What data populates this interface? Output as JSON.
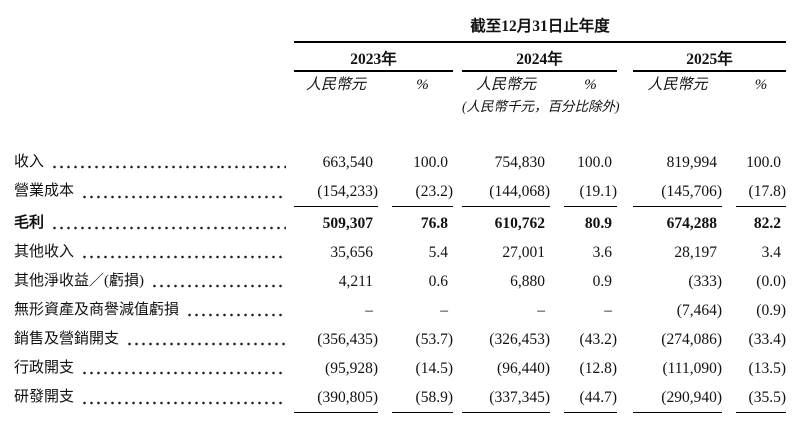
{
  "colors": {
    "background": "#ffffff",
    "text": "#111111",
    "rule": "#000000"
  },
  "header": {
    "period_title": "截至12月31日止年度",
    "years": [
      "2023年",
      "2024年",
      "2025年"
    ],
    "currency_label": "人民幣元",
    "percent_label": "%",
    "unit_note": "(人民幣千元，百分比除外)"
  },
  "rows": [
    {
      "label": "收入",
      "y2023": {
        "value": "663,540",
        "pct": "100.0"
      },
      "y2024": {
        "value": "754,830",
        "pct": "100.0"
      },
      "y2025": {
        "value": "819,994",
        "pct": "100.0"
      }
    },
    {
      "label": "營業成本",
      "y2023": {
        "value": "(154,233)",
        "pct": "(23.2)"
      },
      "y2024": {
        "value": "(144,068)",
        "pct": "(19.1)"
      },
      "y2025": {
        "value": "(145,706)",
        "pct": "(17.8)"
      }
    },
    {
      "label": "毛利",
      "y2023": {
        "value": "509,307",
        "pct": "76.8"
      },
      "y2024": {
        "value": "610,762",
        "pct": "80.9"
      },
      "y2025": {
        "value": "674,288",
        "pct": "82.2"
      }
    },
    {
      "label": "其他收入",
      "y2023": {
        "value": "35,656",
        "pct": "5.4"
      },
      "y2024": {
        "value": "27,001",
        "pct": "3.6"
      },
      "y2025": {
        "value": "28,197",
        "pct": "3.4"
      }
    },
    {
      "label": "其他淨收益／(虧損)",
      "y2023": {
        "value": "4,211",
        "pct": "0.6"
      },
      "y2024": {
        "value": "6,880",
        "pct": "0.9"
      },
      "y2025": {
        "value": "(333)",
        "pct": "(0.0)"
      }
    },
    {
      "label": "無形資產及商譽減值虧損",
      "y2023": {
        "value": "–",
        "pct": "–"
      },
      "y2024": {
        "value": "–",
        "pct": "–"
      },
      "y2025": {
        "value": "(7,464)",
        "pct": "(0.9)"
      }
    },
    {
      "label": "銷售及營銷開支",
      "y2023": {
        "value": "(356,435)",
        "pct": "(53.7)"
      },
      "y2024": {
        "value": "(326,453)",
        "pct": "(43.2)"
      },
      "y2025": {
        "value": "(274,086)",
        "pct": "(33.4)"
      }
    },
    {
      "label": "行政開支",
      "y2023": {
        "value": "(95,928)",
        "pct": "(14.5)"
      },
      "y2024": {
        "value": "(96,440)",
        "pct": "(12.8)"
      },
      "y2025": {
        "value": "(111,090)",
        "pct": "(13.5)"
      }
    },
    {
      "label": "研發開支",
      "y2023": {
        "value": "(390,805)",
        "pct": "(58.9)"
      },
      "y2024": {
        "value": "(337,345)",
        "pct": "(44.7)"
      },
      "y2025": {
        "value": "(290,940)",
        "pct": "(35.5)"
      }
    }
  ]
}
